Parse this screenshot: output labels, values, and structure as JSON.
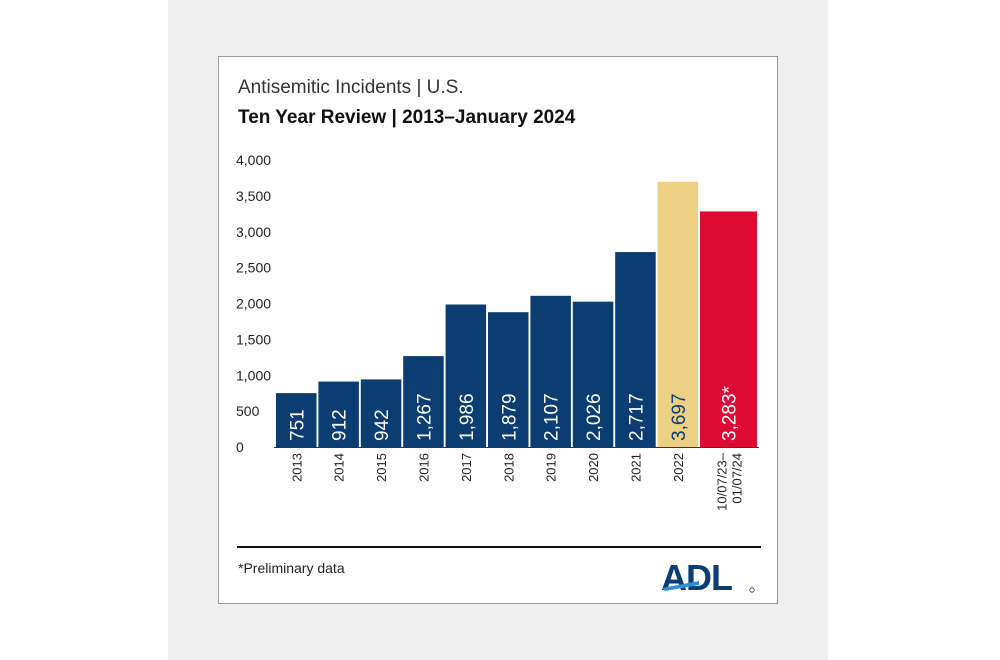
{
  "card": {
    "title": "Antisemitic Incidents | U.S.",
    "subtitle": "Ten Year Review | 2013–January 2024",
    "footnote": "*Preliminary data",
    "logo_text": "ADL"
  },
  "colors": {
    "navy": "#0b3c72",
    "gold": "#edd083",
    "red": "#de0a34",
    "navy_label_on_gold": "#0b3c72",
    "logo_navy": "#0b3c72",
    "logo_blue": "#2e8fd4"
  },
  "chart_data": {
    "type": "bar",
    "title": "Antisemitic Incidents | U.S.",
    "subtitle": "Ten Year Review | 2013–January 2024",
    "categories": [
      "2013",
      "2014",
      "2015",
      "2016",
      "2017",
      "2018",
      "2019",
      "2020",
      "2021",
      "2022",
      "10/07/23–\n01/07/24"
    ],
    "values": [
      751,
      912,
      942,
      1267,
      1986,
      1879,
      2107,
      2026,
      2717,
      3697,
      3283
    ],
    "value_labels": [
      "751",
      "912",
      "942",
      "1,267",
      "1,986",
      "1,879",
      "2,107",
      "2,026",
      "2,717",
      "3,697",
      "3,283*"
    ],
    "bar_colors": [
      "navy",
      "navy",
      "navy",
      "navy",
      "navy",
      "navy",
      "navy",
      "navy",
      "navy",
      "gold",
      "red"
    ],
    "ylim": [
      0,
      4000
    ],
    "yticks": [
      0,
      500,
      1000,
      1500,
      2000,
      2500,
      3000,
      3500,
      4000
    ],
    "ytick_labels": [
      "0",
      "500",
      "1,000",
      "1,500",
      "2,000",
      "2,500",
      "3,000",
      "3,500",
      "4,000"
    ],
    "xlabel": "",
    "ylabel": "",
    "grid": false,
    "legend": "none"
  }
}
